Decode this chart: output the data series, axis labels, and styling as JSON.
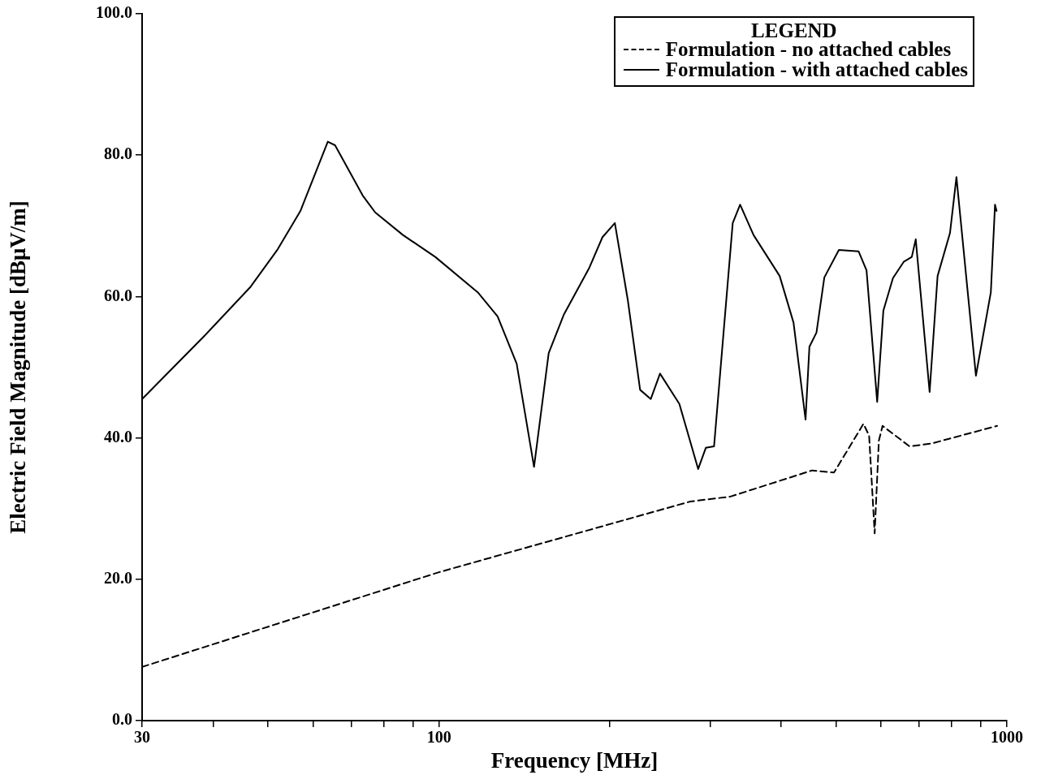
{
  "chart_data": {
    "type": "line",
    "xlabel": "Frequency [MHz]",
    "ylabel": "Electric Field Magnitude [dBμV/m]",
    "legend_title": "LEGEND",
    "legend": "top right",
    "log": "x",
    "grid": false,
    "marker": "none",
    "xlim": [
      30,
      1000
    ],
    "ylim": [
      0,
      100
    ],
    "xticks": [
      30,
      {
        "value": 40,
        "label": null
      },
      {
        "value": 50,
        "label": null
      },
      {
        "value": 60,
        "label": null
      },
      {
        "value": 70,
        "label": null
      },
      {
        "value": 80,
        "label": null
      },
      {
        "value": 90,
        "label": null
      },
      100,
      {
        "value": 200,
        "label": null
      },
      {
        "value": 300,
        "label": null
      },
      {
        "value": 400,
        "label": null
      },
      {
        "value": 500,
        "label": null
      },
      {
        "value": 600,
        "label": null
      },
      {
        "value": 700,
        "label": null
      },
      {
        "value": 800,
        "label": null
      },
      {
        "value": 900,
        "label": null
      },
      1000
    ],
    "yticks": [
      {
        "value": 0,
        "label": "0.0"
      },
      {
        "value": 20,
        "label": "20.0"
      },
      {
        "value": 40,
        "label": "40.0"
      },
      {
        "value": 60,
        "label": "60.0"
      },
      {
        "value": 80,
        "label": "80.0"
      },
      {
        "value": 100,
        "label": "100.0"
      }
    ],
    "series": [
      {
        "name": "Formulation - no attached cables",
        "color": "#000000",
        "line_style": "dashed",
        "x": [
          30,
          100,
          277,
          326,
          454,
          496,
          529,
          559,
          572,
          585,
          595,
          604,
          674,
          736,
          961
        ],
        "values": [
          7.6,
          21.0,
          31.0,
          31.7,
          35.4,
          35.1,
          38.8,
          42.0,
          40.3,
          26.5,
          39.6,
          41.7,
          38.8,
          39.2,
          41.7
        ]
      },
      {
        "name": "Formulation - with attached cables",
        "color": "#000000",
        "line_style": "solid",
        "x": [
          30,
          38.7,
          46.6,
          52.0,
          57.0,
          63.7,
          65.6,
          73.5,
          77.2,
          86.4,
          98.5,
          117,
          126.8,
          137,
          147,
          156,
          166,
          184,
          194,
          204,
          215,
          226,
          236,
          245,
          265,
          286,
          295,
          305,
          329,
          339,
          358,
          398,
          421,
          442,
          449,
          462,
          477,
          506,
          548,
          566,
          591,
          606,
          630,
          658,
          680,
          691,
          731,
          755,
          794,
          815,
          882,
          937,
          953,
          959
        ],
        "values": [
          45.5,
          54.5,
          61.4,
          66.7,
          72.1,
          81.9,
          81.4,
          74.2,
          71.9,
          68.7,
          65.6,
          60.6,
          57.2,
          50.5,
          35.9,
          52.0,
          57.5,
          64.1,
          68.4,
          70.4,
          59.5,
          46.8,
          45.5,
          49.1,
          44.8,
          35.6,
          38.6,
          38.8,
          70.4,
          73.0,
          68.7,
          62.9,
          56.3,
          42.6,
          52.9,
          54.9,
          62.7,
          66.6,
          66.4,
          63.7,
          45.1,
          58.0,
          62.6,
          64.9,
          65.6,
          68.1,
          46.5,
          62.9,
          69.0,
          76.9,
          48.8,
          60.6,
          73.0,
          72.1
        ]
      }
    ]
  }
}
